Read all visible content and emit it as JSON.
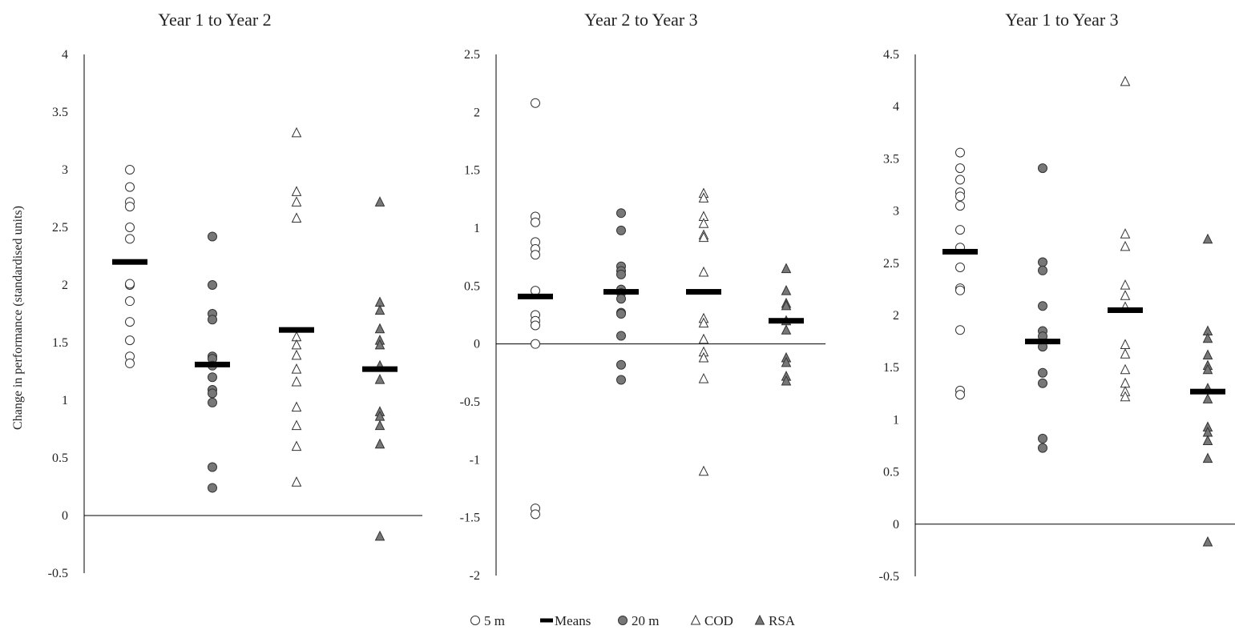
{
  "chart_data": {
    "type": "scatter",
    "ylabel": "Change in performance (standardised units)",
    "legend_position": "bottom",
    "legend": [
      {
        "name": "5 m",
        "marker": "open-circle"
      },
      {
        "name": "Means",
        "marker": "bar"
      },
      {
        "name": "20 m",
        "marker": "filled-circle"
      },
      {
        "name": "COD",
        "marker": "open-triangle"
      },
      {
        "name": "RSA",
        "marker": "filled-triangle"
      }
    ],
    "colors": {
      "filled_marker": "#777777",
      "marker_stroke": "#333333",
      "mean_bar": "#000000",
      "axis": "#000000"
    },
    "panels": [
      {
        "title": "Year 1 to Year 2",
        "ylim": [
          -0.5,
          4
        ],
        "yticks": [
          "-0.5",
          "0",
          "0.5",
          "1",
          "1.5",
          "2",
          "2.5",
          "3",
          "3.5",
          "4"
        ],
        "yticks_num": [
          -0.5,
          0,
          0.5,
          1,
          1.5,
          2,
          2.5,
          3,
          3.5,
          4
        ],
        "series": [
          {
            "name": "5 m",
            "mean": 2.2,
            "values": [
              3.0,
              2.85,
              2.72,
              2.68,
              2.5,
              2.4,
              2.0,
              2.01,
              1.86,
              1.68,
              1.52,
              1.38,
              1.32
            ]
          },
          {
            "name": "20 m",
            "mean": 1.31,
            "values": [
              2.42,
              2.0,
              1.75,
              1.7,
              1.38,
              1.36,
              1.3,
              1.2,
              1.09,
              1.06,
              0.98,
              0.42,
              0.24
            ]
          },
          {
            "name": "COD",
            "mean": 1.61,
            "values": [
              3.32,
              2.81,
              2.72,
              2.58,
              1.55,
              1.48,
              1.39,
              1.27,
              1.16,
              0.94,
              0.78,
              0.6,
              0.29
            ]
          },
          {
            "name": "RSA",
            "mean": 1.27,
            "values": [
              2.72,
              1.85,
              1.78,
              1.62,
              1.52,
              1.48,
              1.3,
              1.18,
              0.9,
              0.86,
              0.78,
              0.62,
              -0.18
            ]
          }
        ]
      },
      {
        "title": "Year 2 to Year 3",
        "ylim": [
          -2,
          2.5
        ],
        "yticks": [
          "-2",
          "-1.5",
          "-1",
          "-0.5",
          "0",
          "0.5",
          "1",
          "1.5",
          "2",
          "2.5"
        ],
        "yticks_num": [
          -2,
          -1.5,
          -1,
          -0.5,
          0,
          0.5,
          1,
          1.5,
          2,
          2.5
        ],
        "series": [
          {
            "name": "5 m",
            "mean": 0.41,
            "values": [
              2.08,
              1.1,
              1.05,
              0.88,
              0.82,
              0.77,
              0.46,
              0.25,
              0.2,
              0.16,
              0.0,
              -1.42,
              -1.47
            ]
          },
          {
            "name": "20 m",
            "mean": 0.45,
            "values": [
              1.13,
              0.98,
              0.67,
              0.63,
              0.6,
              0.47,
              0.44,
              0.39,
              0.27,
              0.26,
              0.07,
              -0.18,
              -0.31
            ]
          },
          {
            "name": "COD",
            "mean": 0.45,
            "values": [
              1.3,
              1.26,
              1.1,
              1.04,
              0.94,
              0.92,
              0.62,
              0.22,
              0.18,
              0.04,
              -0.07,
              -0.12,
              -0.3,
              -1.1
            ]
          },
          {
            "name": "RSA",
            "mean": 0.2,
            "values": [
              0.65,
              0.46,
              0.35,
              0.33,
              0.2,
              0.12,
              -0.12,
              -0.16,
              -0.28,
              -0.32
            ]
          }
        ]
      },
      {
        "title": "Year 1 to Year 3",
        "ylim": [
          -0.5,
          4.5
        ],
        "yticks": [
          "-0.5",
          "0",
          "0.5",
          "1",
          "1.5",
          "2",
          "2.5",
          "3",
          "3.5",
          "4",
          "4.5"
        ],
        "yticks_num": [
          -0.5,
          0,
          0.5,
          1,
          1.5,
          2,
          2.5,
          3,
          3.5,
          4,
          4.5
        ],
        "series": [
          {
            "name": "5 m",
            "mean": 2.61,
            "values": [
              3.56,
              3.41,
              3.3,
              3.18,
              3.14,
              3.05,
              2.82,
              2.65,
              2.46,
              2.26,
              2.24,
              1.86,
              1.28,
              1.24
            ]
          },
          {
            "name": "20 m",
            "mean": 1.75,
            "values": [
              3.41,
              2.51,
              2.43,
              2.09,
              1.85,
              1.8,
              1.7,
              1.45,
              1.35,
              0.82,
              0.73
            ]
          },
          {
            "name": "COD",
            "mean": 2.05,
            "values": [
              4.24,
              2.78,
              2.66,
              2.29,
              2.19,
              2.08,
              1.72,
              1.63,
              1.48,
              1.35,
              1.27,
              1.22
            ]
          },
          {
            "name": "RSA",
            "mean": 1.27,
            "values": [
              2.73,
              1.85,
              1.78,
              1.62,
              1.52,
              1.48,
              1.3,
              1.2,
              0.93,
              0.88,
              0.8,
              0.63,
              -0.17
            ]
          }
        ]
      }
    ]
  }
}
